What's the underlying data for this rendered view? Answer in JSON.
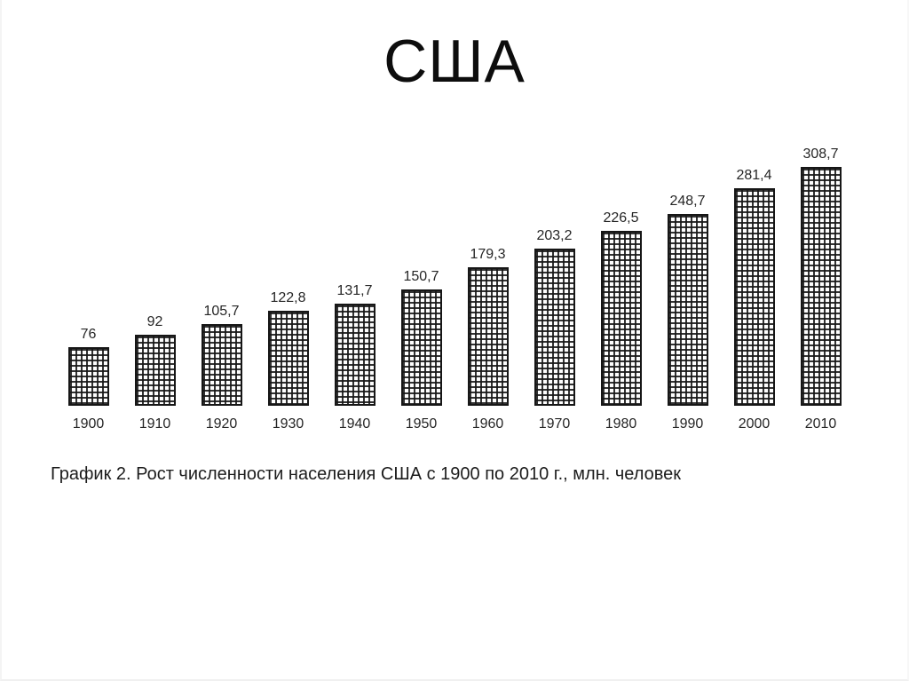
{
  "page": {
    "title": "США",
    "caption": "График 2. Рост численности населения США с 1900 по 2010 г., млн. человек"
  },
  "chart_data": {
    "type": "bar",
    "title": "США",
    "categories": [
      "1900",
      "1910",
      "1920",
      "1930",
      "1940",
      "1950",
      "1960",
      "1970",
      "1980",
      "1990",
      "2000",
      "2010"
    ],
    "values": [
      76,
      92,
      105.7,
      122.8,
      131.7,
      150.7,
      179.3,
      203.2,
      226.5,
      248.7,
      281.4,
      308.7
    ],
    "value_labels": [
      "76",
      "92",
      "105,7",
      "122,8",
      "131,7",
      "150,7",
      "179,3",
      "203,2",
      "226,5",
      "248,7",
      "281,4",
      "308,7"
    ],
    "xlabel": "",
    "ylabel": "",
    "ylim": [
      0,
      320
    ],
    "grid": false,
    "legend_position": "none",
    "caption": "График 2. Рост численности населения США с 1900 по 2010 г., млн. человек",
    "bar_fill_style": "cross-hatch-grid",
    "colors": {
      "background": "#ffffff",
      "bar_line": "#161616",
      "text": "#262626"
    }
  }
}
